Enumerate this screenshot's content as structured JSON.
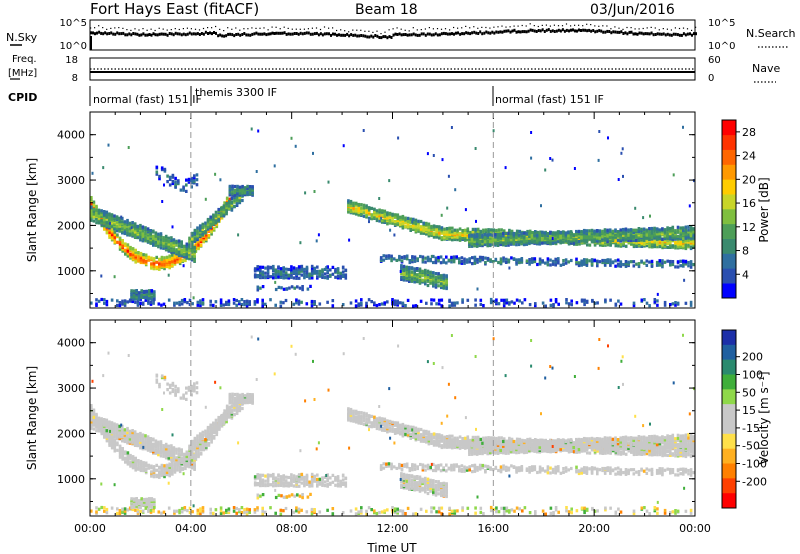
{
  "header": {
    "title": "Fort Hays East (fitACF)",
    "beam": "Beam 18",
    "date": "03/Jun/2016"
  },
  "status_panels": {
    "nsky_label": "N.Sky",
    "nsearch_label": "N.Search",
    "freq_label_1": "Freq.",
    "freq_label_2": "[MHz]",
    "nave_label": "Nave",
    "cpid_label": "CPID",
    "nsky_ticks": [
      "10^5",
      "10^0"
    ],
    "nsearch_ticks": [
      "10^5",
      "10^0"
    ],
    "freq_ticks": [
      "18",
      "8"
    ],
    "nave_ticks": [
      "60",
      "0"
    ],
    "cpid_segments": [
      {
        "label": "normal (fast) 151 IF",
        "start_hour": 0
      },
      {
        "label": "themis 3300 IF",
        "start_hour": 4
      },
      {
        "label": "normal (fast) 151 IF",
        "start_hour": 16
      }
    ]
  },
  "chart_data": [
    {
      "type": "heatmap",
      "title": "",
      "parameter": "Power",
      "xlabel": "",
      "ylabel": "Slant Range [km]",
      "xlim_hours": [
        0,
        24
      ],
      "ylim_km": [
        180,
        4500
      ],
      "y_ticks": [
        "1000",
        "2000",
        "3000",
        "4000"
      ],
      "colorbar": {
        "label": "Power [dB]",
        "ticks": [
          "4",
          "8",
          "12",
          "16",
          "20",
          "24",
          "28"
        ],
        "range": [
          0,
          30
        ],
        "colors": [
          "#0000ff",
          "#2a4fb0",
          "#2f6fa0",
          "#3a8a6e",
          "#4d9e58",
          "#7fbf3f",
          "#c8d528",
          "#ffcc00",
          "#ff9900",
          "#ff6600",
          "#ff3300",
          "#ff0000"
        ]
      }
    },
    {
      "type": "heatmap",
      "title": "",
      "parameter": "Velocity",
      "xlabel": "Time UT",
      "ylabel": "Slant Range [km]",
      "xlim_hours": [
        0,
        24
      ],
      "ylim_km": [
        180,
        4500
      ],
      "y_ticks": [
        "1000",
        "2000",
        "3000",
        "4000"
      ],
      "x_ticks": [
        "00:00",
        "04:00",
        "08:00",
        "12:00",
        "16:00",
        "20:00",
        "00:00"
      ],
      "colorbar": {
        "label": "Velocity [m s⁻¹]",
        "ticks": [
          "200",
          "100",
          "50",
          "15",
          "-15",
          "-50",
          "-100",
          "-200"
        ],
        "range": [
          -250,
          250
        ],
        "colors": [
          "#1c2fa8",
          "#1f5fa0",
          "#2a8a6e",
          "#3fae3a",
          "#8fd84a",
          "#c8c8c8",
          "#c8c8c8",
          "#ffe04a",
          "#ffb020",
          "#ff8000",
          "#ff4000",
          "#ff0000"
        ]
      }
    }
  ],
  "ground_scatter_color": "#c8c8c8"
}
